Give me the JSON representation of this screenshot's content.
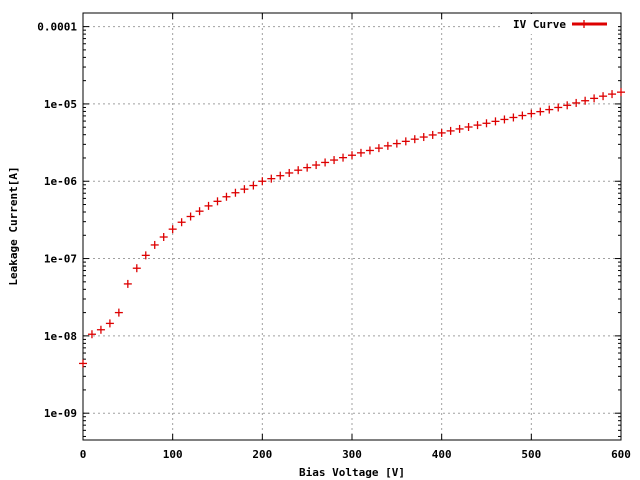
{
  "chart_data": {
    "type": "scatter",
    "title": "",
    "xlabel": "Bias Voltage [V]",
    "ylabel": "Leakage Current[A]",
    "xlim": [
      0,
      600
    ],
    "ylim": [
      4.5e-10,
      0.00015
    ],
    "yscale": "log",
    "grid": true,
    "legend_position": "top-right",
    "x_ticks": [
      {
        "value": 0,
        "label": "0"
      },
      {
        "value": 100,
        "label": "100"
      },
      {
        "value": 200,
        "label": "200"
      },
      {
        "value": 300,
        "label": "300"
      },
      {
        "value": 400,
        "label": "400"
      },
      {
        "value": 500,
        "label": "500"
      },
      {
        "value": 600,
        "label": "600"
      }
    ],
    "y_ticks": [
      {
        "value": 1e-09,
        "label": "1e-09"
      },
      {
        "value": 1e-08,
        "label": "1e-08"
      },
      {
        "value": 1e-07,
        "label": "1e-07"
      },
      {
        "value": 1e-06,
        "label": "1e-06"
      },
      {
        "value": 1e-05,
        "label": "1e-05"
      },
      {
        "value": 0.0001,
        "label": "0.0001"
      }
    ],
    "series": [
      {
        "name": "IV Curve",
        "color": "#dd0000",
        "marker": "plus",
        "x": [
          0,
          10,
          20,
          30,
          40,
          50,
          60,
          70,
          80,
          90,
          100,
          110,
          120,
          130,
          140,
          150,
          160,
          170,
          180,
          190,
          200,
          210,
          220,
          230,
          240,
          250,
          260,
          270,
          280,
          290,
          300,
          310,
          320,
          330,
          340,
          350,
          360,
          370,
          380,
          390,
          400,
          410,
          420,
          430,
          440,
          450,
          460,
          470,
          480,
          490,
          500,
          510,
          520,
          530,
          540,
          550,
          560,
          570,
          580,
          590,
          600
        ],
        "y": [
          4.4e-09,
          1.05e-08,
          1.2e-08,
          1.45e-08,
          2e-08,
          4.7e-08,
          7.5e-08,
          1.1e-07,
          1.5e-07,
          1.9e-07,
          2.4e-07,
          2.95e-07,
          3.5e-07,
          4.1e-07,
          4.8e-07,
          5.5e-07,
          6.3e-07,
          7.1e-07,
          7.9e-07,
          8.8e-07,
          1e-06,
          1.08e-06,
          1.18e-06,
          1.28e-06,
          1.39e-06,
          1.5e-06,
          1.62e-06,
          1.75e-06,
          1.88e-06,
          2.02e-06,
          2.17e-06,
          2.33e-06,
          2.5e-06,
          2.68e-06,
          2.87e-06,
          3.07e-06,
          3.28e-06,
          3.5e-06,
          3.73e-06,
          3.97e-06,
          4.22e-06,
          4.48e-06,
          4.75e-06,
          5.03e-06,
          5.32e-06,
          5.62e-06,
          5.95e-06,
          6.3e-06,
          6.68e-06,
          7.08e-06,
          7.5e-06,
          7.95e-06,
          8.45e-06,
          9e-06,
          9.6e-06,
          1.03e-05,
          1.1e-05,
          1.18e-05,
          1.26e-05,
          1.34e-05,
          1.42e-05
        ]
      }
    ]
  }
}
